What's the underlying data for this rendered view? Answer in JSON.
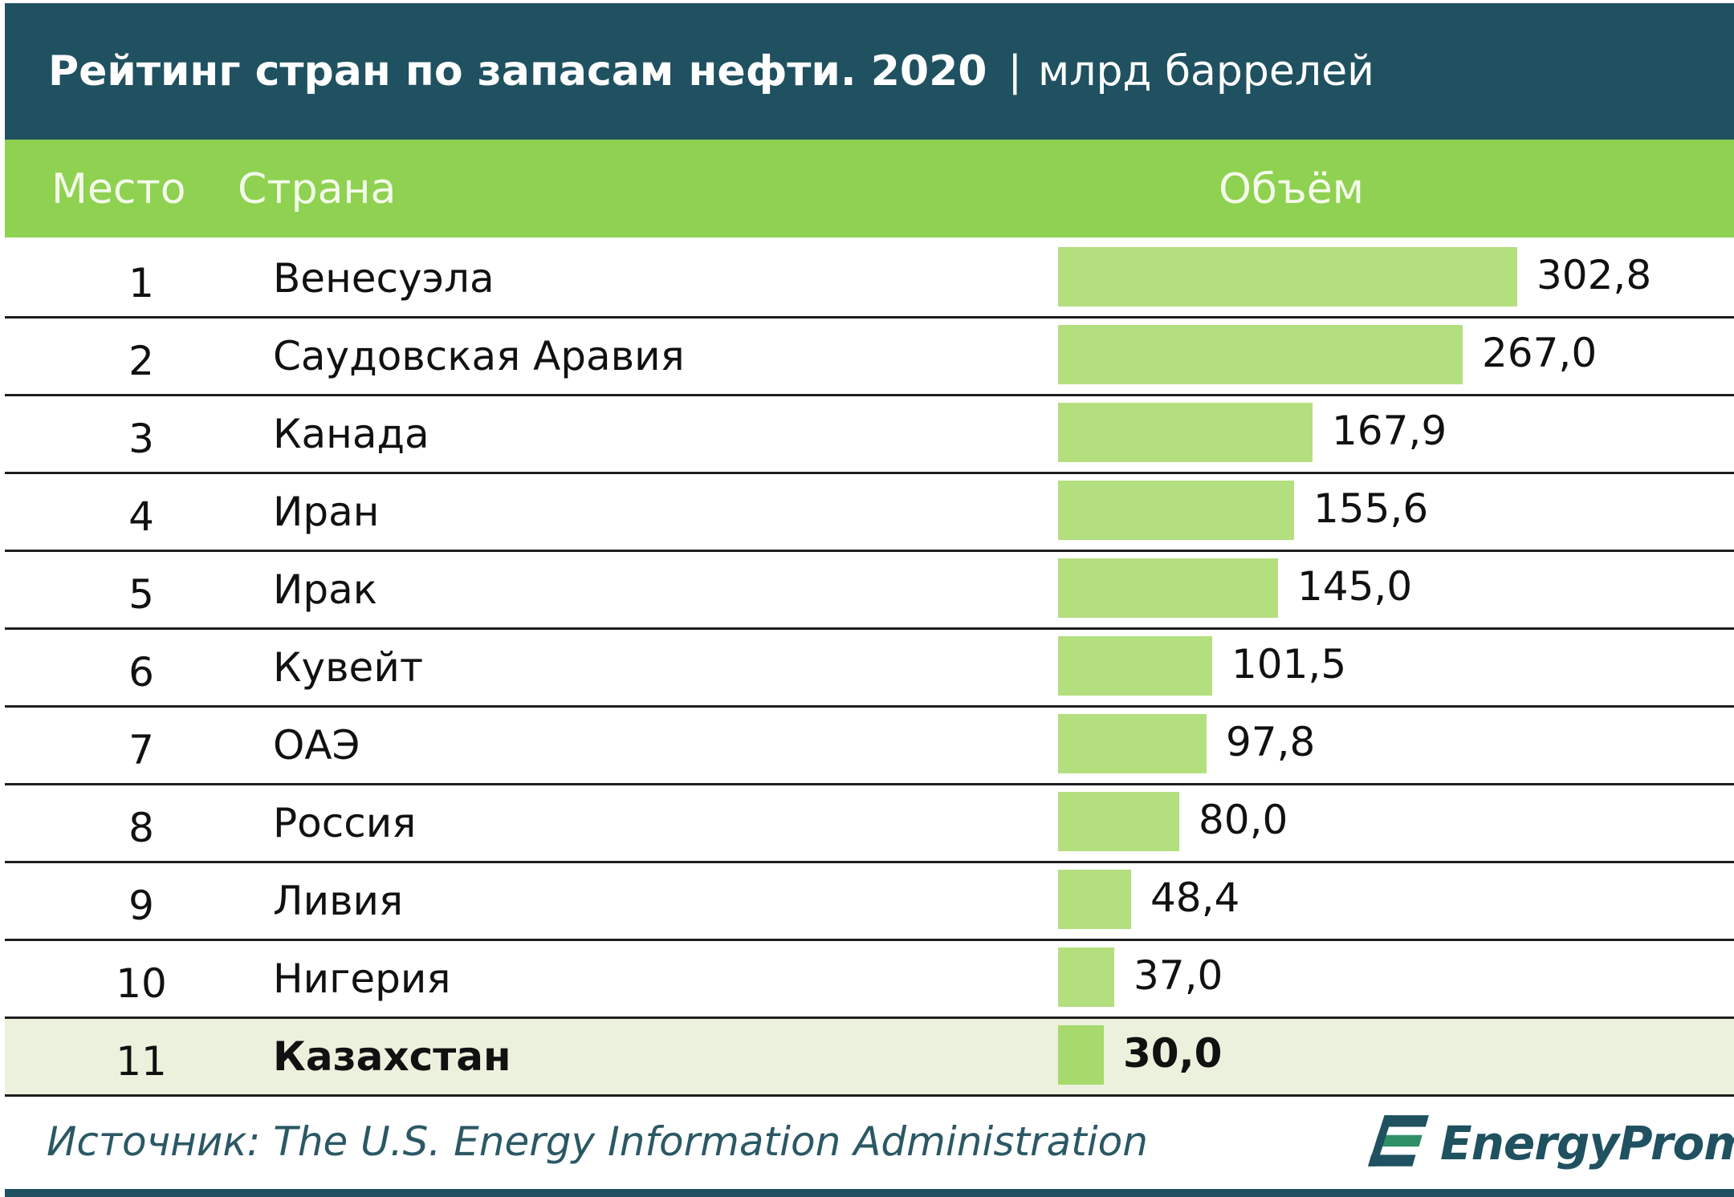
{
  "title": {
    "main": "Рейтинг стран по запасам нефти. 2020",
    "separator": "|",
    "unit": "млрд баррелей"
  },
  "header": {
    "place": "Место",
    "country": "Страна",
    "volume": "Объём"
  },
  "chart_data": {
    "type": "bar",
    "orientation": "horizontal",
    "title": "Рейтинг стран по запасам нефти. 2020",
    "unit": "млрд баррелей",
    "categories": [
      "Венесуэла",
      "Саудовская Аравия",
      "Канада",
      "Иран",
      "Ирак",
      "Кувейт",
      "ОАЭ",
      "Россия",
      "Ливия",
      "Нигерия",
      "Казахстан"
    ],
    "places": [
      "1",
      "2",
      "3",
      "4",
      "5",
      "6",
      "7",
      "8",
      "9",
      "10",
      "11"
    ],
    "values": [
      302.8,
      267.0,
      167.9,
      155.6,
      145.0,
      101.5,
      97.8,
      80.0,
      48.4,
      37.0,
      30.0
    ],
    "value_labels": [
      "302,8",
      "267,0",
      "167,9",
      "155,6",
      "145,0",
      "101,5",
      "97,8",
      "80,0",
      "48,4",
      "37,0",
      "30,0"
    ],
    "highlighted": "Казахстан",
    "bar_color": "#b3df7f",
    "highlight_row_color": "#ebf1dc"
  },
  "footer": {
    "source": "Источник: The U.S. Energy Information Administration",
    "logo_text": "EnergyProm"
  },
  "colors": {
    "title_bg": "#1f5160",
    "header_bg": "#8fd151"
  }
}
